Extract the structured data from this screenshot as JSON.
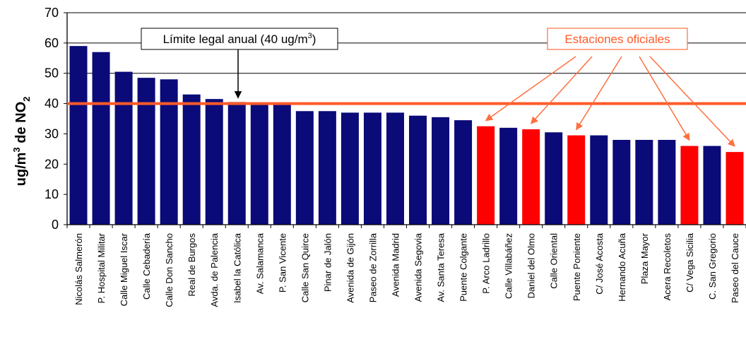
{
  "chart_data": {
    "type": "bar",
    "ylabel": "ug/m³ de NO₂",
    "ylim": [
      0,
      70
    ],
    "yticks": [
      0,
      10,
      20,
      30,
      40,
      50,
      60,
      70
    ],
    "grid": "horizontal lines at 40, 50, 60, 70",
    "categories": [
      "Nicolás Salmerón",
      "P. Hospital Militar",
      "Calle Miguel Iscar",
      "Calle Cebadería",
      "Calle Don Sancho",
      "Real de Burgos",
      "Avda. de Palencia",
      "Isabel la Católica",
      "Av. Salamanca",
      "P. San Vicente",
      "Calle San Quirce",
      "Pinar de Jalón",
      "Avenida de Gijón",
      "Paseo de Zorrilla",
      "Avenida Madrid",
      "Avenida Segovia",
      "Av. Santa Teresa",
      "Puente Colgante",
      "P. Arco Ladrillo",
      "Calle Villabáñez",
      "Daniel del Olmo",
      "Calle Oriental",
      "Puente Poniente",
      "C/ José Acosta",
      "Hernando Acuña",
      "Plaza Mayor",
      "Acera Recoletos",
      "C/ Vega Sicilia",
      "C. San Gregorio",
      "Paseo del Cauce"
    ],
    "values": [
      59,
      57,
      50.5,
      48.5,
      48,
      43,
      41.5,
      40.5,
      40,
      40,
      37.5,
      37.5,
      37,
      37,
      37,
      36,
      35.5,
      34.5,
      32.5,
      32,
      31.5,
      30.5,
      29.5,
      29.5,
      28,
      28,
      28,
      26,
      26,
      24
    ],
    "bar_types": [
      "normal",
      "normal",
      "normal",
      "normal",
      "normal",
      "normal",
      "normal",
      "normal",
      "normal",
      "normal",
      "normal",
      "normal",
      "normal",
      "normal",
      "normal",
      "normal",
      "normal",
      "normal",
      "oficial",
      "normal",
      "oficial",
      "normal",
      "oficial",
      "normal",
      "normal",
      "normal",
      "normal",
      "oficial",
      "normal",
      "oficial"
    ],
    "colors": {
      "normal": "#0a0a78",
      "oficial": "#ff0000",
      "limit_line": "#ff5a28",
      "callout_arrow": "#ff7040"
    },
    "limit": {
      "value": 40,
      "label_prefix": "Límite legal anual (40 ug/m",
      "label_sup": "3",
      "label_suffix": ")"
    },
    "official_callout": {
      "label": "Estaciones oficiales"
    }
  }
}
